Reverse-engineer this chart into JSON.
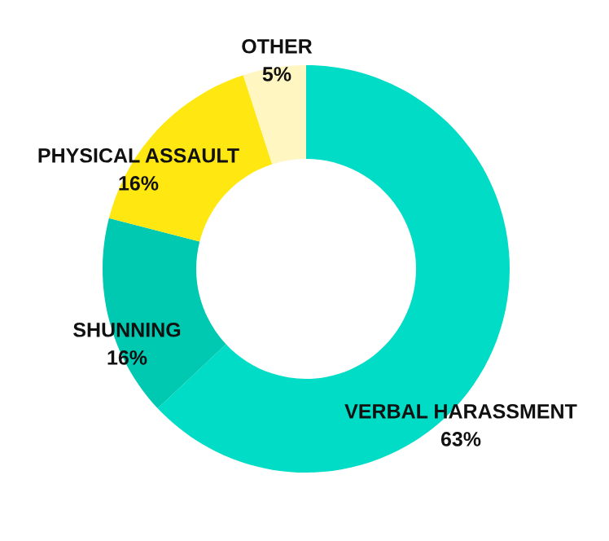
{
  "chart_data": {
    "type": "donut",
    "categories": [
      "VERBAL HARASSMENT",
      "SHUNNING",
      "PHYSICAL ASSAULT",
      "OTHER"
    ],
    "values": [
      63,
      16,
      16,
      5
    ],
    "value_labels": [
      "63%",
      "16%",
      "16%",
      "5%"
    ],
    "colors": [
      "#00dcc6",
      "#00c9b1",
      "#ffe812",
      "#fff6c2"
    ],
    "legend": false
  }
}
